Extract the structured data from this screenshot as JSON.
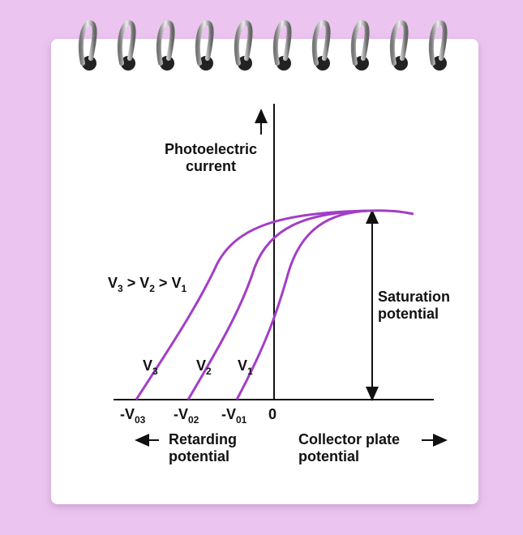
{
  "y_label": [
    "Photoelectric",
    "current"
  ],
  "relation": [
    "V",
    "3",
    " > ",
    "V",
    "2",
    " > ",
    "V",
    "1"
  ],
  "curve_labels": [
    {
      "base": "V",
      "sub": "3"
    },
    {
      "base": "V",
      "sub": "2"
    },
    {
      "base": "V",
      "sub": "1"
    }
  ],
  "intercepts": [
    {
      "base": "-V",
      "sub": "03"
    },
    {
      "base": "-V",
      "sub": "02"
    },
    {
      "base": "-V",
      "sub": "01"
    }
  ],
  "origin": "0",
  "saturation": [
    "Saturation",
    "potential"
  ],
  "retarding": [
    "Retarding",
    "potential"
  ],
  "collector": [
    "Collector plate",
    "potential"
  ]
}
